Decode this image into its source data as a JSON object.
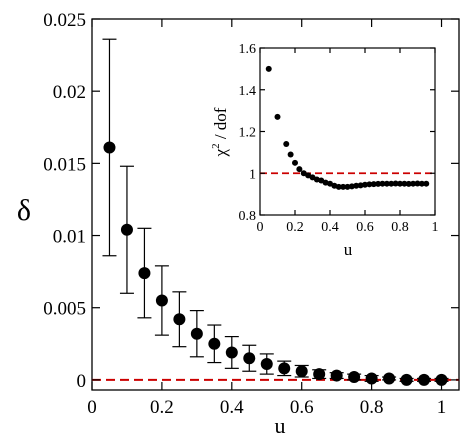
{
  "chart_data": [
    {
      "type": "scatter",
      "title": "",
      "xlabel": "u",
      "ylabel": "δ",
      "xlim": [
        0,
        1.05
      ],
      "ylim": [
        -0.0007,
        0.025
      ],
      "xticks": [
        "0",
        "0.2",
        "0.4",
        "0.6",
        "0.8",
        "1"
      ],
      "yticks": [
        "0",
        "0.005",
        "0.01",
        "0.015",
        "0.02",
        "0.025"
      ],
      "reference_line": {
        "y": 0,
        "color": "#cc0000",
        "style": "dashed"
      },
      "series": [
        {
          "x": [
            0.05,
            0.1,
            0.15,
            0.2,
            0.25,
            0.3,
            0.35,
            0.4,
            0.45,
            0.5,
            0.55,
            0.6,
            0.65,
            0.7,
            0.75,
            0.8,
            0.85,
            0.9,
            0.95,
            1.0
          ],
          "y": [
            0.0161,
            0.0104,
            0.0074,
            0.0055,
            0.0042,
            0.0032,
            0.0025,
            0.0019,
            0.0015,
            0.0011,
            0.0008,
            0.0006,
            0.0004,
            0.0003,
            0.0002,
            0.0001,
            0.0001,
            0.0,
            0.0,
            0.0
          ],
          "err": [
            0.0075,
            0.0044,
            0.0031,
            0.0024,
            0.0019,
            0.0016,
            0.0013,
            0.0011,
            0.0009,
            0.0007,
            0.0005,
            0.0004,
            0.0003,
            0.0002,
            0.0002,
            0.0002,
            0.0001,
            0.0001,
            0.0001,
            0.0001
          ]
        }
      ],
      "grid": false
    },
    {
      "type": "scatter",
      "title": "",
      "xlabel": "u",
      "ylabel_main": "χ",
      "ylabel_sup": "2",
      "ylabel_rest": " / dof",
      "xlim": [
        0,
        1
      ],
      "ylim": [
        0.8,
        1.6
      ],
      "xticks": [
        "0",
        "0.2",
        "0.4",
        "0.6",
        "0.8",
        "1"
      ],
      "yticks": [
        "0.8",
        "1",
        "1.2",
        "1.4",
        "1.6"
      ],
      "reference_line": {
        "y": 1,
        "color": "#cc0000",
        "style": "dashed"
      },
      "series": [
        {
          "x": [
            0.05,
            0.1,
            0.15,
            0.175,
            0.2,
            0.225,
            0.25,
            0.275,
            0.3,
            0.325,
            0.35,
            0.375,
            0.4,
            0.425,
            0.45,
            0.475,
            0.5,
            0.525,
            0.55,
            0.575,
            0.6,
            0.625,
            0.65,
            0.675,
            0.7,
            0.725,
            0.75,
            0.775,
            0.8,
            0.825,
            0.85,
            0.875,
            0.9,
            0.925,
            0.95
          ],
          "y": [
            1.5,
            1.27,
            1.14,
            1.09,
            1.05,
            1.02,
            1.0,
            0.99,
            0.98,
            0.97,
            0.965,
            0.955,
            0.95,
            0.94,
            0.935,
            0.935,
            0.935,
            0.937,
            0.94,
            0.942,
            0.945,
            0.947,
            0.948,
            0.949,
            0.95,
            0.95,
            0.95,
            0.951,
            0.95,
            0.95,
            0.949,
            0.95,
            0.951,
            0.95,
            0.95
          ]
        }
      ],
      "grid": false
    }
  ]
}
